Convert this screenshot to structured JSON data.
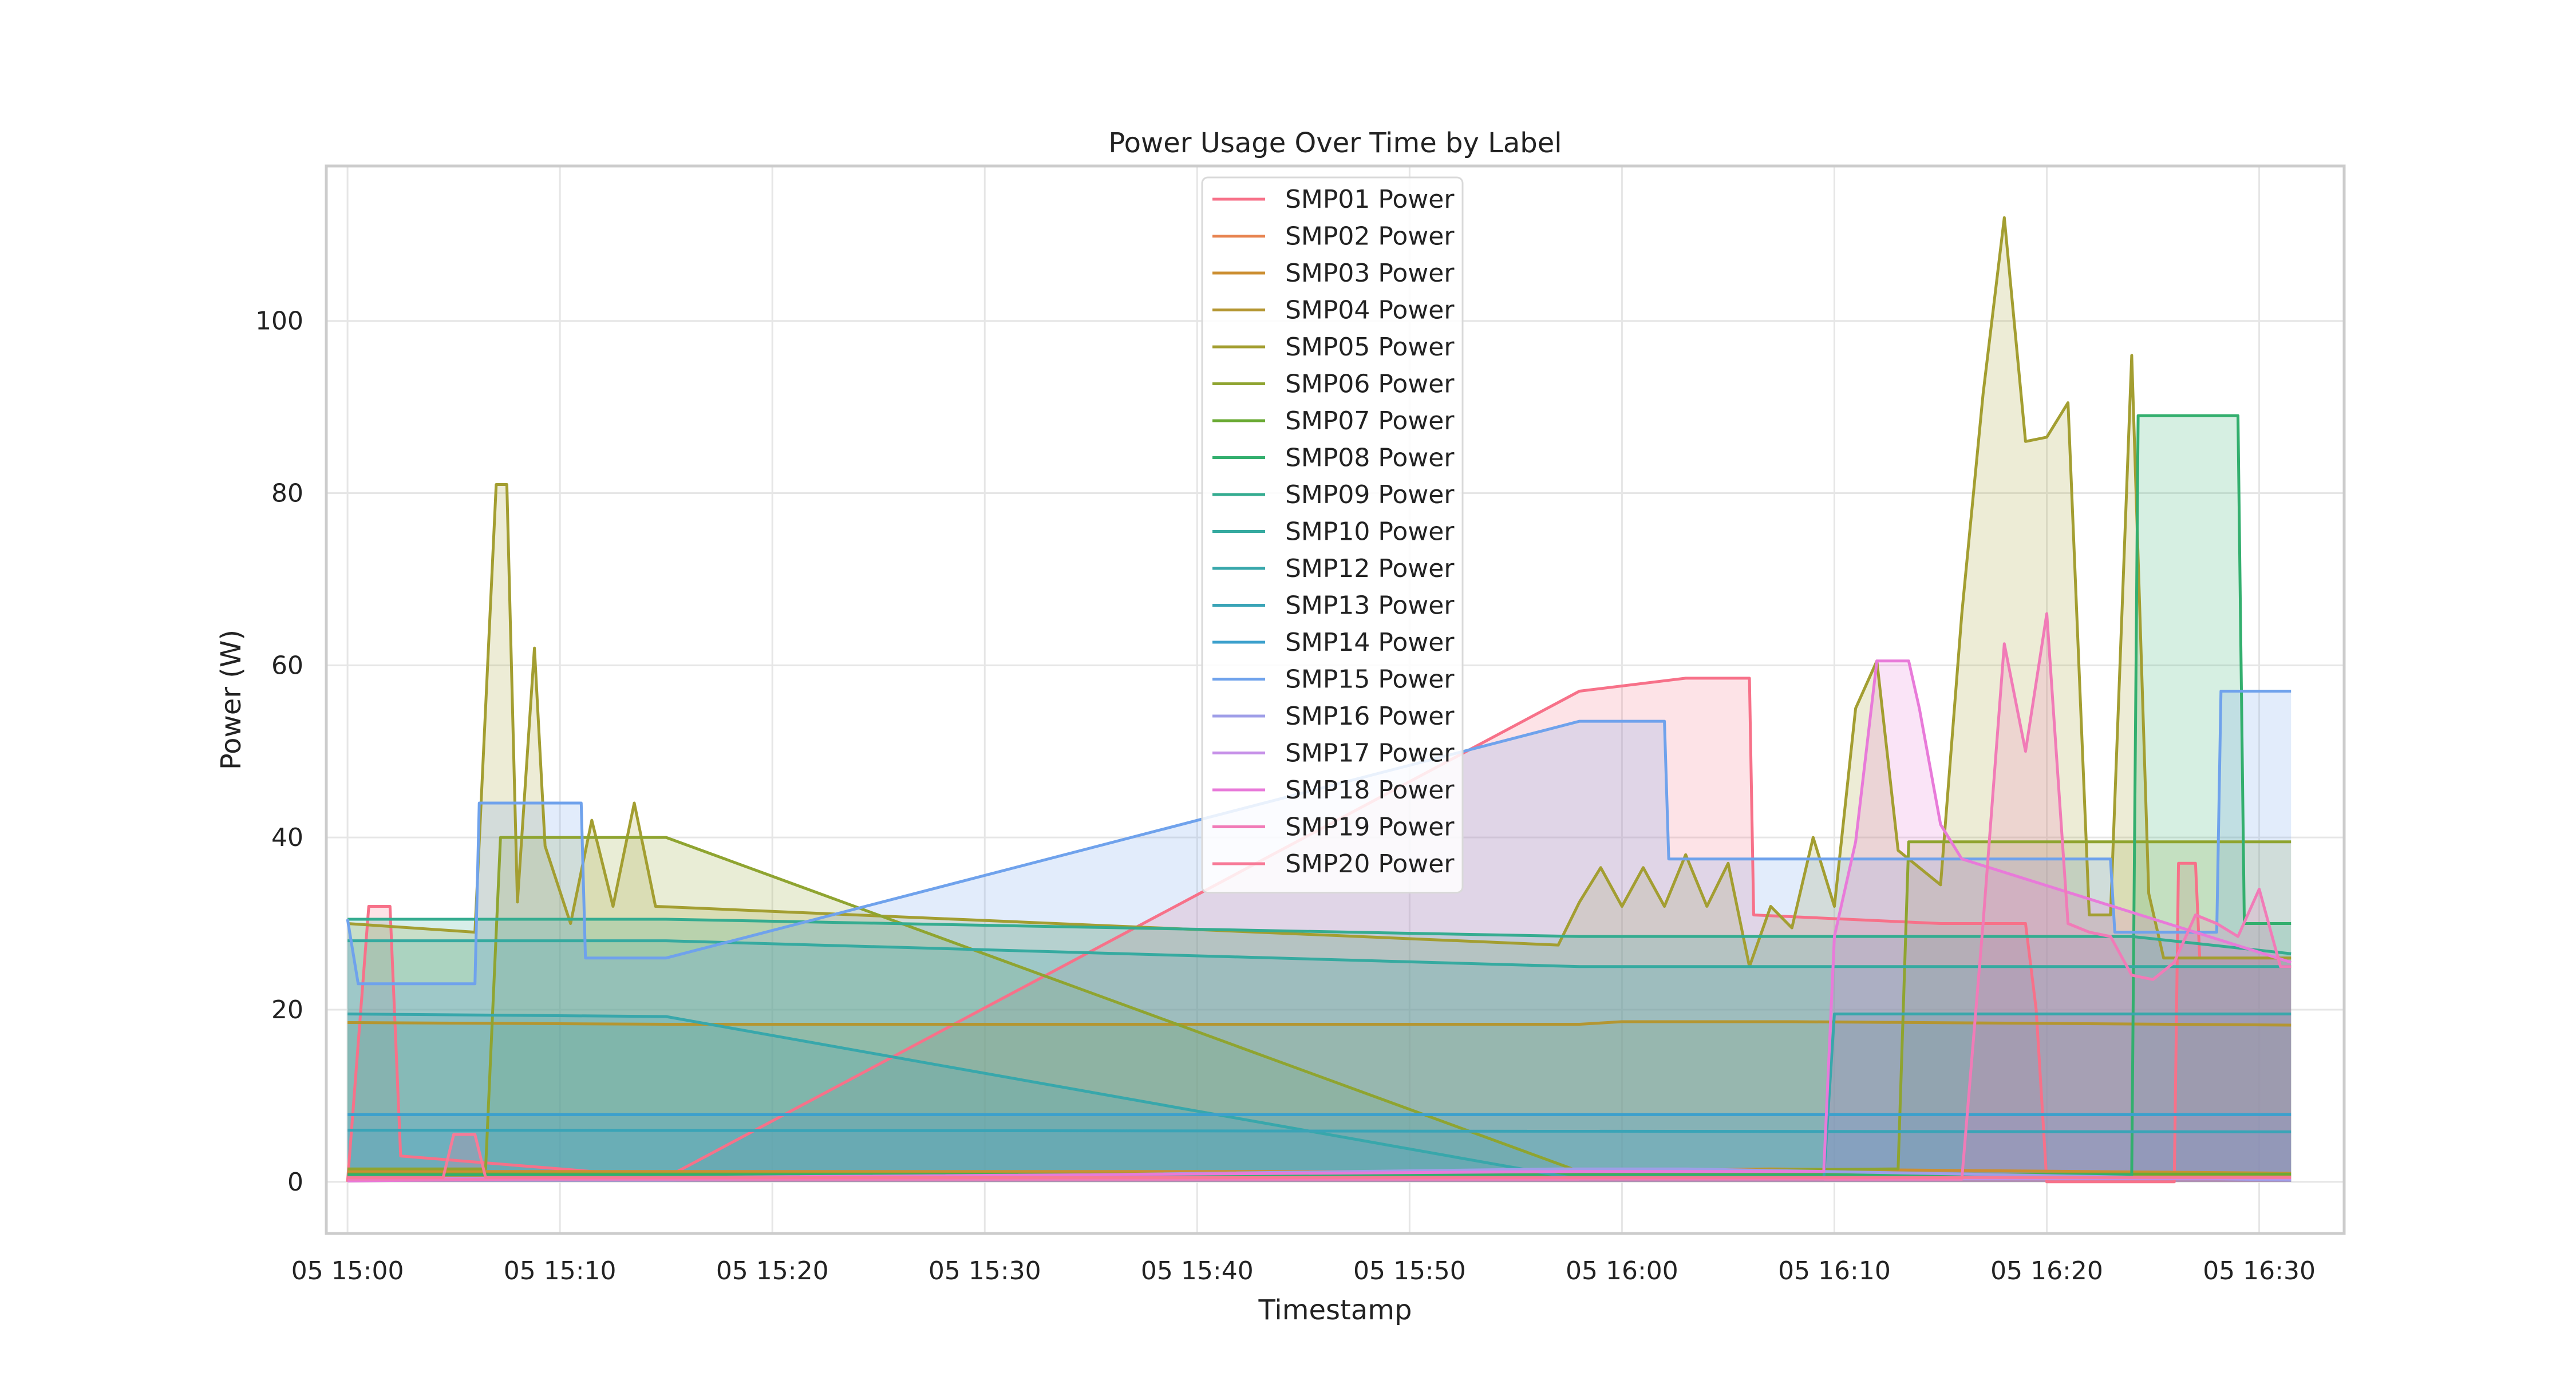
{
  "chart_data": {
    "type": "area",
    "title": "Power Usage Over Time by Label",
    "xlabel": "Timestamp",
    "ylabel": "Power (W)",
    "x_domain": [
      "2024-01-05 14:59",
      "2024-01-05 16:34"
    ],
    "ylim": [
      -6,
      118
    ],
    "x_ticks": [
      {
        "t": "2024-01-05 15:00",
        "label": "05 15:00"
      },
      {
        "t": "2024-01-05 15:10",
        "label": "05 15:10"
      },
      {
        "t": "2024-01-05 15:20",
        "label": "05 15:20"
      },
      {
        "t": "2024-01-05 15:30",
        "label": "05 15:30"
      },
      {
        "t": "2024-01-05 15:40",
        "label": "05 15:40"
      },
      {
        "t": "2024-01-05 15:50",
        "label": "05 15:50"
      },
      {
        "t": "2024-01-05 16:00",
        "label": "05 16:00"
      },
      {
        "t": "2024-01-05 16:10",
        "label": "05 16:10"
      },
      {
        "t": "2024-01-05 16:20",
        "label": "05 16:20"
      },
      {
        "t": "2024-01-05 16:30",
        "label": "05 16:30"
      }
    ],
    "y_ticks": [
      0,
      20,
      40,
      60,
      80,
      100
    ],
    "grid": true,
    "legend_position": "top-center",
    "series": [
      {
        "name": "SMP01 Power",
        "color": "#f77189",
        "points": [
          [
            "15:00.0",
            0
          ],
          [
            "15:01.0",
            32
          ],
          [
            "15:02.0",
            32
          ],
          [
            "15:02.5",
            3
          ],
          [
            "15:15.0",
            0.5
          ],
          [
            "15:58.0",
            57
          ],
          [
            "16:03.0",
            58.5
          ],
          [
            "16:06.0",
            58.5
          ],
          [
            "16:06.2",
            31
          ],
          [
            "16:15.0",
            30
          ],
          [
            "16:19.0",
            30
          ],
          [
            "16:19.5",
            20
          ],
          [
            "16:20.0",
            0
          ],
          [
            "16:26.0",
            0
          ],
          [
            "16:26.2",
            37
          ],
          [
            "16:27.0",
            37
          ],
          [
            "16:27.2",
            26
          ],
          [
            "16:31.5",
            26
          ]
        ]
      },
      {
        "name": "SMP02 Power",
        "color": "#e7834f",
        "points": [
          [
            "15:00.0",
            0.6
          ],
          [
            "16:31.5",
            0.6
          ]
        ]
      },
      {
        "name": "SMP03 Power",
        "color": "#cc8f32",
        "points": [
          [
            "15:00.0",
            1.2
          ],
          [
            "15:58.0",
            1.2
          ],
          [
            "16:07.0",
            1.5
          ],
          [
            "16:31.5",
            1.0
          ]
        ]
      },
      {
        "name": "SMP04 Power",
        "color": "#b49631",
        "points": [
          [
            "15:00.0",
            18.5
          ],
          [
            "15:15.0",
            18.3
          ],
          [
            "15:58.0",
            18.3
          ],
          [
            "16:00.0",
            18.6
          ],
          [
            "16:08.0",
            18.6
          ],
          [
            "16:31.5",
            18.2
          ]
        ]
      },
      {
        "name": "SMP05 Power",
        "color": "#a39e31",
        "points": [
          [
            "15:00.0",
            30
          ],
          [
            "15:06.0",
            29
          ],
          [
            "15:07.0",
            81
          ],
          [
            "15:07.5",
            81
          ],
          [
            "15:08.0",
            32.5
          ],
          [
            "15:08.8",
            62
          ],
          [
            "15:09.3",
            39
          ],
          [
            "15:10.5",
            30
          ],
          [
            "15:11.5",
            42
          ],
          [
            "15:12.5",
            32
          ],
          [
            "15:13.5",
            44
          ],
          [
            "15:14.5",
            32
          ],
          [
            "15:57.0",
            27.5
          ],
          [
            "15:58.0",
            32.5
          ],
          [
            "15:59.0",
            36.5
          ],
          [
            "16:00.0",
            32
          ],
          [
            "16:01.0",
            36.5
          ],
          [
            "16:02.0",
            32
          ],
          [
            "16:03.0",
            38
          ],
          [
            "16:04.0",
            32
          ],
          [
            "16:05.0",
            37
          ],
          [
            "16:06.0",
            25
          ],
          [
            "16:07.0",
            32
          ],
          [
            "16:08.0",
            29.5
          ],
          [
            "16:09.0",
            40
          ],
          [
            "16:10.0",
            32
          ],
          [
            "16:11.0",
            55
          ],
          [
            "16:12.0",
            60.5
          ],
          [
            "16:13.0",
            38.5
          ],
          [
            "16:14.0",
            36.5
          ],
          [
            "16:15.0",
            34.5
          ],
          [
            "16:16.0",
            66
          ],
          [
            "16:17.0",
            91.5
          ],
          [
            "16:18.0",
            112
          ],
          [
            "16:19.0",
            86
          ],
          [
            "16:20.0",
            86.5
          ],
          [
            "16:21.0",
            90.5
          ],
          [
            "16:22.0",
            31
          ],
          [
            "16:23.0",
            31
          ],
          [
            "16:24.0",
            96
          ],
          [
            "16:24.8",
            33.5
          ],
          [
            "16:25.5",
            26
          ],
          [
            "16:31.5",
            26
          ]
        ]
      },
      {
        "name": "SMP06 Power",
        "color": "#8fa430",
        "points": [
          [
            "15:00.0",
            1.5
          ],
          [
            "15:06.5",
            1.5
          ],
          [
            "15:07.2",
            40
          ],
          [
            "15:15.0",
            40
          ],
          [
            "15:58.0",
            1.2
          ],
          [
            "16:13.0",
            1.5
          ],
          [
            "16:13.5",
            39.5
          ],
          [
            "16:31.5",
            39.5
          ]
        ]
      },
      {
        "name": "SMP07 Power",
        "color": "#6aaa33",
        "points": [
          [
            "15:00.0",
            0.9
          ],
          [
            "16:31.5",
            0.9
          ]
        ]
      },
      {
        "name": "SMP08 Power",
        "color": "#33af6e",
        "points": [
          [
            "15:00.0",
            0.8
          ],
          [
            "16:24.0",
            0.8
          ],
          [
            "16:24.3",
            89
          ],
          [
            "16:29.0",
            89
          ],
          [
            "16:29.3",
            30
          ],
          [
            "16:31.5",
            30
          ]
        ]
      },
      {
        "name": "SMP09 Power",
        "color": "#35ac90",
        "points": [
          [
            "15:00.0",
            30.5
          ],
          [
            "15:15.0",
            30.5
          ],
          [
            "15:58.0",
            28.5
          ],
          [
            "16:24.0",
            28.5
          ],
          [
            "16:31.5",
            26.5
          ]
        ]
      },
      {
        "name": "SMP10 Power",
        "color": "#36aaa0",
        "points": [
          [
            "15:00.0",
            28
          ],
          [
            "15:15.0",
            28
          ],
          [
            "15:58.0",
            25
          ],
          [
            "16:31.5",
            25
          ]
        ]
      },
      {
        "name": "SMP12 Power",
        "color": "#38a7ab",
        "points": [
          [
            "15:00.0",
            19.5
          ],
          [
            "15:15.0",
            19.2
          ],
          [
            "15:58.0",
            0.3
          ],
          [
            "16:09.5",
            0.3
          ],
          [
            "16:10.0",
            19.5
          ],
          [
            "16:31.5",
            19.5
          ]
        ]
      },
      {
        "name": "SMP13 Power",
        "color": "#3aa4b7",
        "points": [
          [
            "15:00.0",
            6
          ],
          [
            "16:31.5",
            5.8
          ]
        ]
      },
      {
        "name": "SMP14 Power",
        "color": "#3ca0cc",
        "points": [
          [
            "15:00.0",
            7.8
          ],
          [
            "16:31.5",
            7.8
          ]
        ]
      },
      {
        "name": "SMP15 Power",
        "color": "#6fa2ec",
        "points": [
          [
            "15:00.0",
            30.5
          ],
          [
            "15:00.5",
            23
          ],
          [
            "15:06.0",
            23
          ],
          [
            "15:06.2",
            44
          ],
          [
            "15:11.0",
            44
          ],
          [
            "15:11.2",
            26
          ],
          [
            "15:15.0",
            26
          ],
          [
            "15:58.0",
            53.5
          ],
          [
            "16:02.0",
            53.5
          ],
          [
            "16:02.2",
            37.5
          ],
          [
            "16:23.0",
            37.5
          ],
          [
            "16:23.2",
            29
          ],
          [
            "16:26.0",
            29
          ],
          [
            "16:27.0",
            29
          ],
          [
            "16:28.0",
            29
          ],
          [
            "16:28.2",
            57
          ],
          [
            "16:31.5",
            57
          ]
        ]
      },
      {
        "name": "SMP16 Power",
        "color": "#9f9ee8",
        "points": [
          [
            "15:00.0",
            0.2
          ],
          [
            "15:15.0",
            0.2
          ],
          [
            "15:57.0",
            1.5
          ],
          [
            "16:03.0",
            1.5
          ],
          [
            "16:31.5",
            0.2
          ]
        ]
      },
      {
        "name": "SMP17 Power",
        "color": "#c690e8",
        "points": [
          [
            "15:00.0",
            0.4
          ],
          [
            "16:31.5",
            0.4
          ]
        ]
      },
      {
        "name": "SMP18 Power",
        "color": "#e87ad9",
        "points": [
          [
            "15:00.0",
            0.1
          ],
          [
            "15:15.0",
            0.5
          ],
          [
            "15:58.0",
            1.2
          ],
          [
            "16:09.5",
            1.2
          ],
          [
            "16:10.0",
            28.5
          ],
          [
            "16:11.0",
            39.5
          ],
          [
            "16:12.0",
            60.5
          ],
          [
            "16:13.5",
            60.5
          ],
          [
            "16:14.0",
            55
          ],
          [
            "16:15.0",
            41.5
          ],
          [
            "16:16.0",
            37.5
          ],
          [
            "16:31.5",
            25.5
          ]
        ]
      },
      {
        "name": "SMP19 Power",
        "color": "#f17bb7",
        "points": [
          [
            "15:00.0",
            0.3
          ],
          [
            "16:16.0",
            0.3
          ],
          [
            "16:17.0",
            30
          ],
          [
            "16:18.0",
            62.5
          ],
          [
            "16:19.0",
            50
          ],
          [
            "16:20.0",
            66
          ],
          [
            "16:21.0",
            30
          ],
          [
            "16:22.0",
            29
          ],
          [
            "16:23.0",
            28.5
          ],
          [
            "16:24.0",
            24
          ],
          [
            "16:25.0",
            23.5
          ],
          [
            "16:26.0",
            25.5
          ],
          [
            "16:27.0",
            31
          ],
          [
            "16:28.0",
            30
          ],
          [
            "16:29.0",
            28.5
          ],
          [
            "16:30.0",
            34
          ],
          [
            "16:31.0",
            25
          ],
          [
            "16:31.5",
            25
          ]
        ]
      },
      {
        "name": "SMP20 Power",
        "color": "#f77a97",
        "points": [
          [
            "15:00.0",
            0.5
          ],
          [
            "15:04.5",
            0.5
          ],
          [
            "15:05.0",
            5.5
          ],
          [
            "15:06.0",
            5.5
          ],
          [
            "15:06.5",
            0.5
          ],
          [
            "16:31.5",
            0.5
          ]
        ]
      }
    ]
  }
}
